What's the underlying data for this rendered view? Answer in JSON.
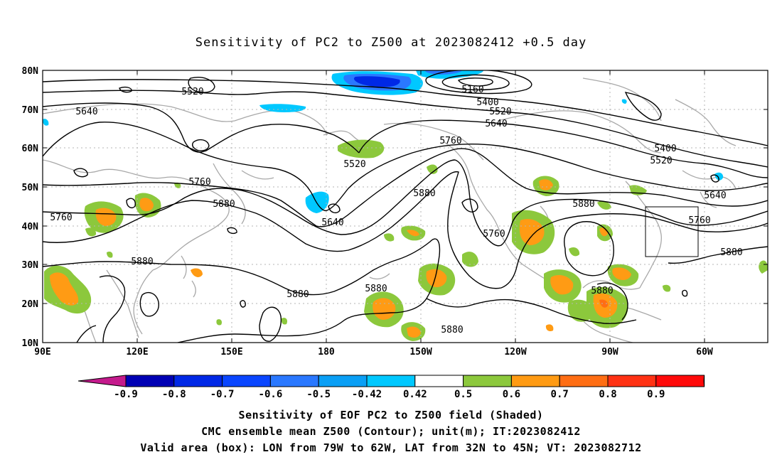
{
  "title": "Sensitivity of PC2 to Z500 at 2023082412 +0.5 day",
  "map": {
    "lat_ticks": [
      "80N",
      "70N",
      "60N",
      "50N",
      "40N",
      "30N",
      "20N",
      "10N"
    ],
    "lon_ticks": [
      "90E",
      "120E",
      "150E",
      "180",
      "150W",
      "120W",
      "90W",
      "60W"
    ],
    "contour_labels": [
      "5520",
      "5640",
      "5160",
      "5400",
      "5520",
      "5640",
      "5760",
      "5400",
      "5520",
      "5520",
      "5760",
      "5880",
      "5880",
      "5640",
      "5760",
      "5760",
      "5880",
      "5640",
      "5760",
      "5880",
      "5880",
      "5880",
      "5880",
      "5880",
      "5880"
    ],
    "valid_box": {
      "lon": [
        -79,
        -62
      ],
      "lat": [
        32,
        45
      ]
    }
  },
  "colorbar": {
    "labels": [
      "-0.9",
      "-0.8",
      "-0.7",
      "-0.6",
      "-0.5",
      "-0.42",
      "0.42",
      "0.5",
      "0.6",
      "0.7",
      "0.8",
      "0.9"
    ],
    "colors": {
      "low_end": "#c41a8c",
      "bins": [
        "#0000b4",
        "#0028e6",
        "#0a46ff",
        "#2a78ff",
        "#0a9ff5",
        "#00c8ff",
        "#ffffff",
        "#8cc83c",
        "#ff9b14",
        "#ff6e14",
        "#ff3214",
        "#ff0a0a"
      ],
      "high_end": "#f5a0c8"
    }
  },
  "footer": {
    "line1": "Sensitivity of EOF PC2 to Z500 field (Shaded)",
    "line2": "CMC ensemble mean Z500 (Contour); unit(m); IT:2023082412",
    "line3": "Valid area (box): LON from 79W to 62W, LAT from 32N to 45N; VT: 2023082712"
  }
}
